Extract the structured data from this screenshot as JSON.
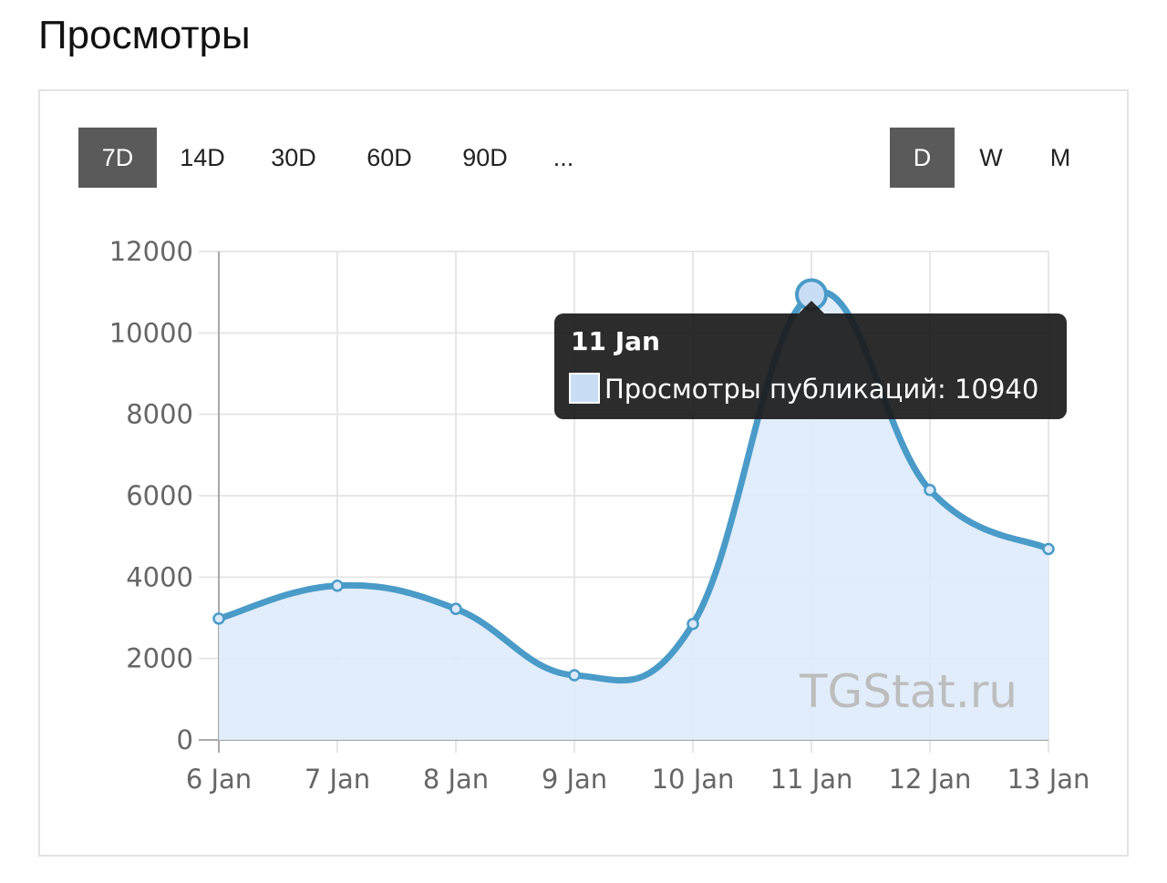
{
  "page": {
    "title": "Просмотры"
  },
  "range_buttons": [
    {
      "label": "7D",
      "active": true
    },
    {
      "label": "14D",
      "active": false
    },
    {
      "label": "30D",
      "active": false
    },
    {
      "label": "60D",
      "active": false
    },
    {
      "label": "90D",
      "active": false
    },
    {
      "label": "...",
      "active": false
    }
  ],
  "granularity_buttons": [
    {
      "label": "D",
      "active": true
    },
    {
      "label": "W",
      "active": false
    },
    {
      "label": "M",
      "active": false
    }
  ],
  "watermark": "TGStat.ru",
  "tooltip": {
    "title": "11 Jan",
    "text": "Просмотры публикаций: 10940",
    "index": 5
  },
  "colors": {
    "line": "#4a9bc8",
    "fill": "#deebfb",
    "tooltip_bg": "#1a1a1a",
    "active_button": "#5a5a5a"
  },
  "chart_data": {
    "type": "area",
    "categories": [
      "6 Jan",
      "7 Jan",
      "8 Jan",
      "9 Jan",
      "10 Jan",
      "11 Jan",
      "12 Jan",
      "13 Jan"
    ],
    "series": [
      {
        "name": "Просмотры публикаций",
        "values": [
          2980,
          3790,
          3220,
          1590,
          2850,
          10940,
          6140,
          4690
        ]
      }
    ],
    "ylim": [
      0,
      12000
    ],
    "yticks": [
      0,
      2000,
      4000,
      6000,
      8000,
      10000,
      12000
    ],
    "grid": true,
    "xlabel": "",
    "ylabel": ""
  }
}
